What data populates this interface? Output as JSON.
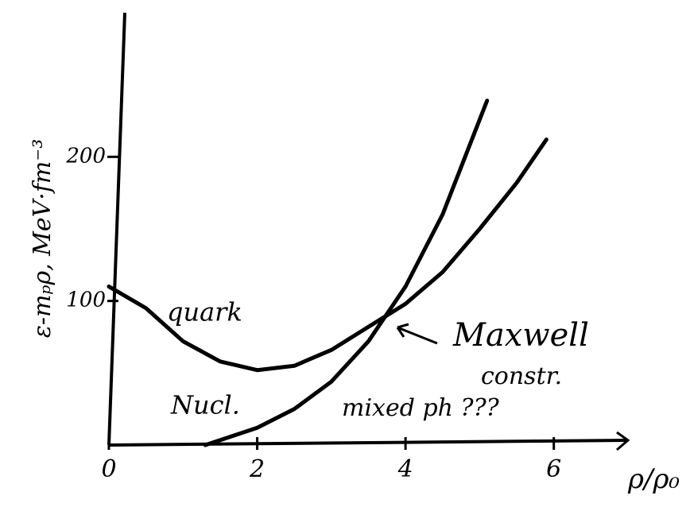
{
  "chart_data": {
    "type": "line",
    "y_label": "ε-mₚρ, MeV·fm⁻³",
    "x_label": "ρ/ρ₀",
    "xlim": [
      0,
      7
    ],
    "xticks": [
      0,
      2,
      4,
      6
    ],
    "ylim": [
      0,
      300
    ],
    "yticks": [
      100,
      200
    ],
    "series": [
      {
        "name": "quark",
        "color": "#000000",
        "x": [
          0,
          0.5,
          1,
          1.5,
          2,
          2.5,
          3,
          3.5,
          4,
          4.5,
          5,
          5.5,
          5.9
        ],
        "values": [
          110,
          95,
          72,
          58,
          52,
          55,
          66,
          82,
          98,
          120,
          150,
          182,
          212
        ]
      },
      {
        "name": "Nucl.",
        "color": "#000000",
        "x": [
          1.3,
          2,
          2.5,
          3,
          3.5,
          4,
          4.5,
          5.1
        ],
        "values": [
          0,
          12,
          25,
          44,
          72,
          110,
          160,
          239
        ]
      }
    ],
    "annotations": [
      "Maxwell",
      "constr.",
      "mixed ph ???"
    ]
  }
}
